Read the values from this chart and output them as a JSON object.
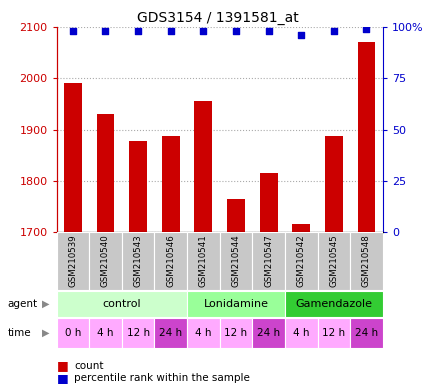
{
  "title": "GDS3154 / 1391581_at",
  "samples": [
    "GSM210539",
    "GSM210540",
    "GSM210543",
    "GSM210546",
    "GSM210541",
    "GSM210544",
    "GSM210547",
    "GSM210542",
    "GSM210545",
    "GSM210548"
  ],
  "counts": [
    1990,
    1930,
    1878,
    1888,
    1955,
    1765,
    1815,
    1717,
    1888,
    2070
  ],
  "percentiles": [
    98,
    98,
    98,
    98,
    98,
    98,
    98,
    96,
    98,
    99
  ],
  "ylim_left": [
    1700,
    2100
  ],
  "ylim_right": [
    0,
    100
  ],
  "yticks_left": [
    1700,
    1800,
    1900,
    2000,
    2100
  ],
  "yticks_right": [
    0,
    25,
    50,
    75,
    100
  ],
  "bar_color": "#cc0000",
  "dot_color": "#0000cc",
  "agents": [
    {
      "label": "control",
      "start": 0,
      "end": 3,
      "color": "#ccffcc"
    },
    {
      "label": "Lonidamine",
      "start": 4,
      "end": 6,
      "color": "#99ff99"
    },
    {
      "label": "Gamendazole",
      "start": 7,
      "end": 9,
      "color": "#33cc33"
    }
  ],
  "times": [
    "0 h",
    "4 h",
    "12 h",
    "24 h",
    "4 h",
    "12 h",
    "24 h",
    "4 h",
    "12 h",
    "24 h"
  ],
  "time_colors": [
    "#ffaaff",
    "#ffaaff",
    "#ffaaff",
    "#cc44cc",
    "#ffaaff",
    "#ffaaff",
    "#cc44cc",
    "#ffaaff",
    "#ffaaff",
    "#cc44cc"
  ],
  "sample_label_bg": "#c8c8c8",
  "grid_color": "#aaaaaa",
  "left_axis_color": "#cc0000",
  "right_axis_color": "#0000cc"
}
